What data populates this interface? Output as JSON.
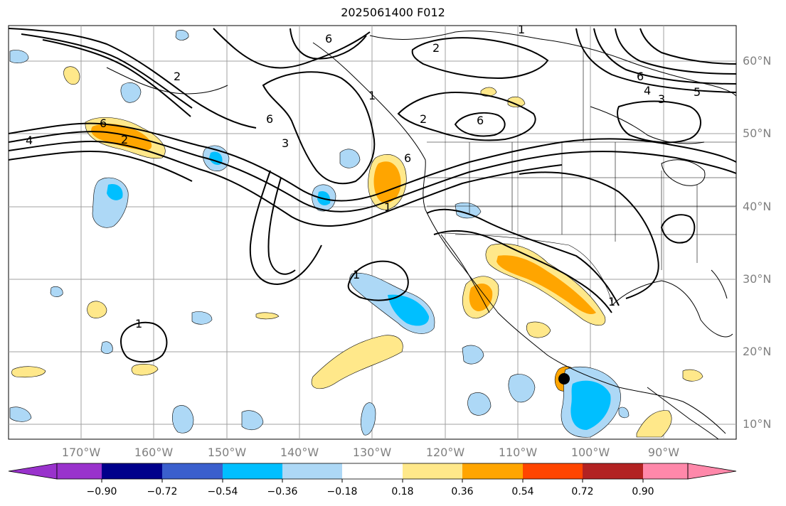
{
  "title": "2025061400 F012",
  "latitude_labels": [
    "60°N",
    "50°N",
    "40°N",
    "30°N",
    "20°N",
    "10°N"
  ],
  "longitude_labels": [
    "170°W",
    "160°W",
    "150°W",
    "140°W",
    "130°W",
    "120°W",
    "110°W",
    "100°W",
    "90°W"
  ],
  "colorbar": {
    "colors": [
      "#9932cc",
      "#00008b",
      "#3a5fcd",
      "#00bfff",
      "#add8f6",
      "#ffffff",
      "#ffe88a",
      "#ffa500",
      "#ff4500",
      "#b22222",
      "#ff88aa"
    ],
    "tick_labels": [
      "−0.90",
      "−0.72",
      "−0.54",
      "−0.36",
      "−0.18",
      "0.18",
      "0.36",
      "0.54",
      "0.72",
      "0.90"
    ]
  },
  "contour_labels": [
    "6",
    "2",
    "1",
    "6",
    "2",
    "6",
    "4",
    "3",
    "5",
    "4",
    "6",
    "2",
    "6",
    "3",
    "1",
    "6",
    "1",
    "1",
    "1",
    "1",
    "2"
  ],
  "fill_colors": {
    "pos_light": "#ffe88a",
    "pos_mid": "#ffa500",
    "neg_light": "#add8f6",
    "neg_mid": "#00bfff"
  }
}
